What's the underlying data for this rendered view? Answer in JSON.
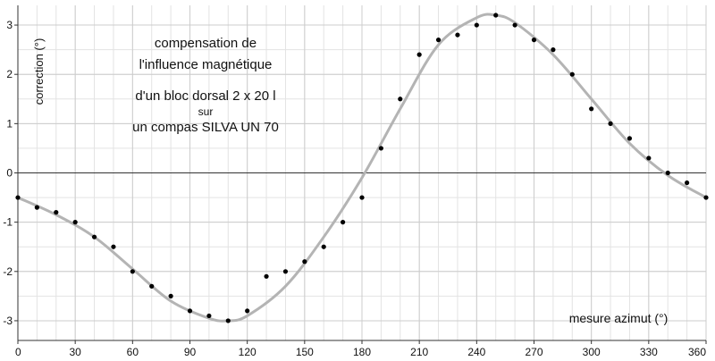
{
  "chart_data": {
    "type": "scatter",
    "title": "",
    "annotations": [
      "compensation de",
      "l'influence magnétique",
      "d'un bloc dorsal 2 x 20 l",
      "sur",
      "un compas SILVA UN 70"
    ],
    "xlabel": "mesure azimut (°)",
    "ylabel": "correction (°)",
    "xlim": [
      0,
      360
    ],
    "ylim": [
      -3.4,
      3.4
    ],
    "xticks": [
      0,
      30,
      60,
      90,
      120,
      150,
      180,
      210,
      240,
      270,
      300,
      330,
      360
    ],
    "yticks": [
      -3,
      -2,
      -1,
      0,
      1,
      2,
      3
    ],
    "grid": true,
    "colors": {
      "points": "#000000",
      "curve": "#b4b4b4",
      "grid": "#cccccc"
    },
    "series": [
      {
        "kind": "points",
        "x": [
          0,
          10,
          20,
          30,
          40,
          50,
          60,
          70,
          80,
          90,
          100,
          110,
          120,
          130,
          140,
          150,
          160,
          170,
          180,
          190,
          200,
          210,
          220,
          230,
          240,
          250,
          260,
          270,
          280,
          290,
          300,
          310,
          320,
          330,
          340,
          350,
          360
        ],
        "y": [
          -0.5,
          -0.7,
          -0.8,
          -1.0,
          -1.3,
          -1.5,
          -2.0,
          -2.3,
          -2.5,
          -2.8,
          -2.9,
          -3.0,
          -2.8,
          -2.1,
          -2.0,
          -1.8,
          -1.5,
          -1.0,
          -0.5,
          0.5,
          1.5,
          2.4,
          2.7,
          2.8,
          3.0,
          3.2,
          3.0,
          2.7,
          2.5,
          2.0,
          1.3,
          1.0,
          0.7,
          0.3,
          0.0,
          -0.2,
          -0.5
        ]
      },
      {
        "kind": "curve",
        "x": [
          0,
          20,
          40,
          60,
          80,
          100,
          110,
          120,
          140,
          160,
          180,
          200,
          220,
          240,
          250,
          260,
          280,
          300,
          320,
          340,
          360
        ],
        "y": [
          -0.5,
          -0.85,
          -1.3,
          -1.95,
          -2.6,
          -2.95,
          -3.0,
          -2.9,
          -2.3,
          -1.3,
          -0.1,
          1.3,
          2.6,
          3.15,
          3.2,
          3.05,
          2.4,
          1.5,
          0.6,
          -0.05,
          -0.5
        ]
      }
    ]
  }
}
